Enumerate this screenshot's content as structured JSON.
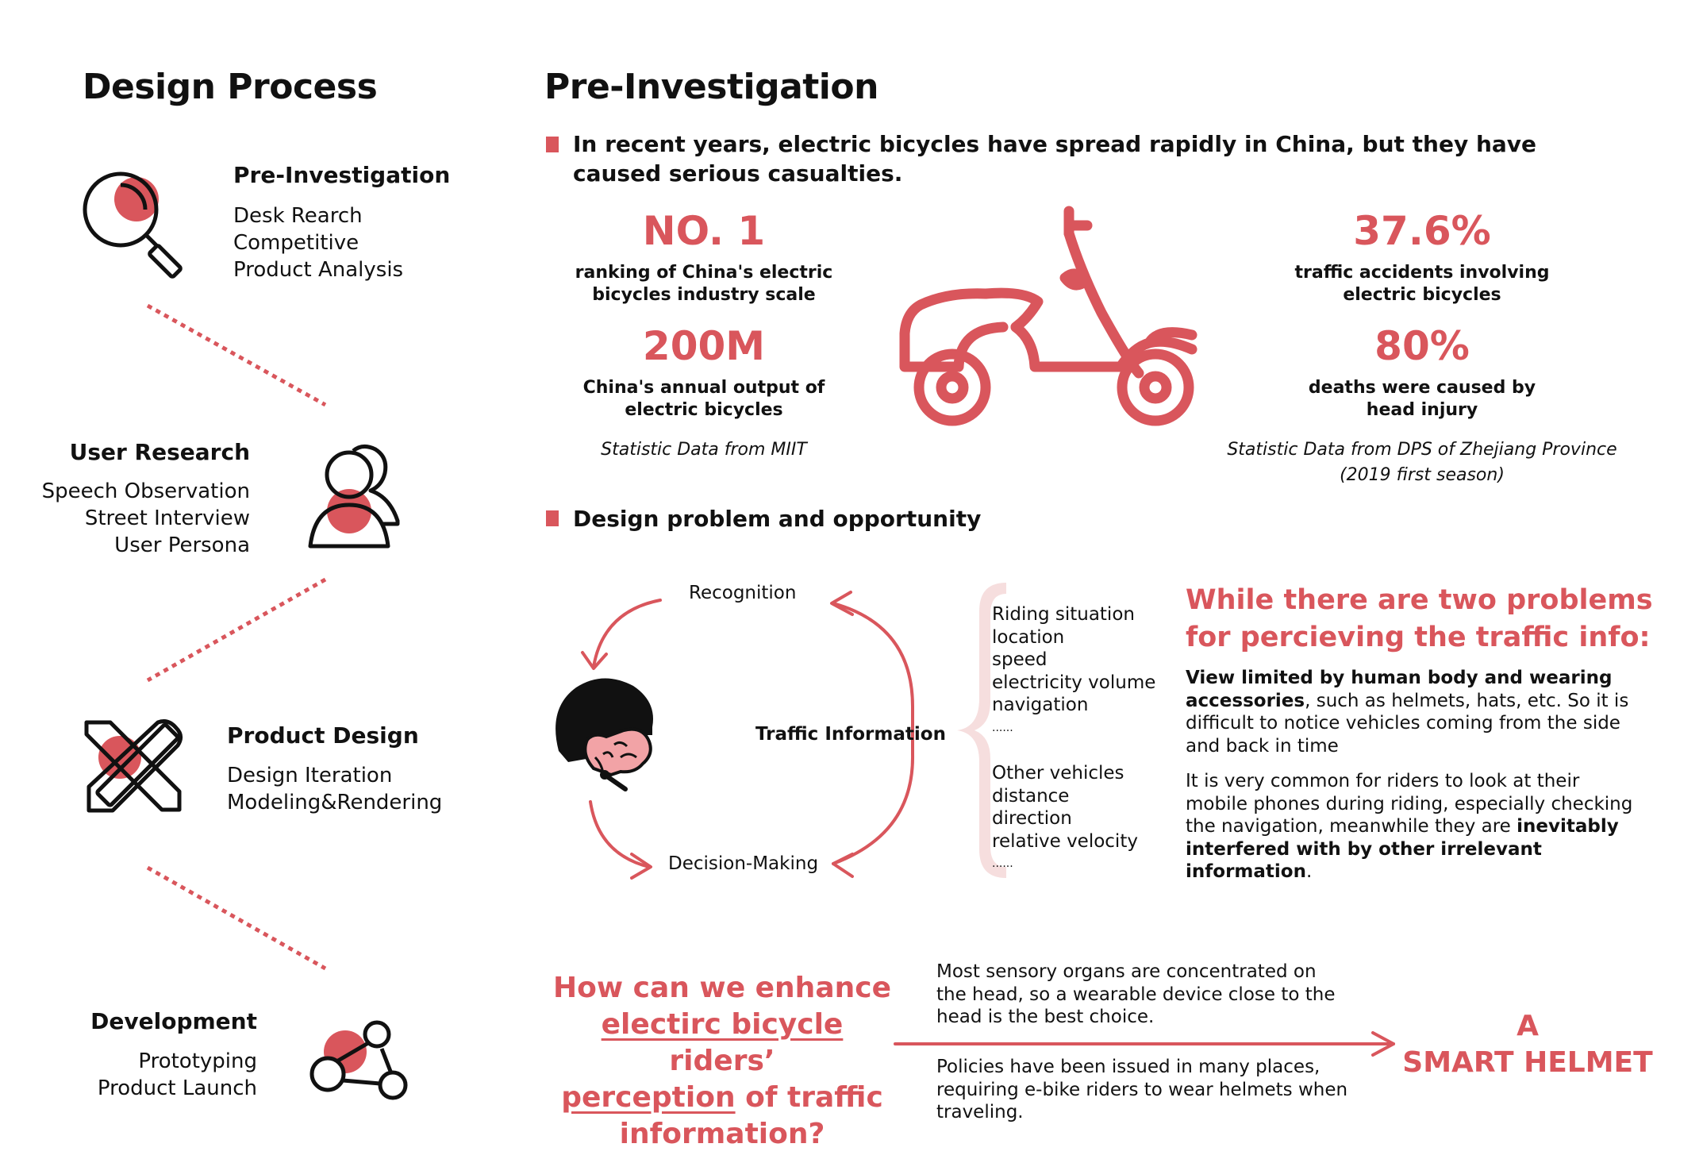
{
  "left": {
    "title": "Design Process",
    "steps": [
      {
        "title": "Pre-Investigation",
        "items": [
          "Desk Rearch",
          "Competitive",
          "Product Analysis"
        ]
      },
      {
        "title": "User Research",
        "items": [
          "Speech Observation",
          "Street Interview",
          "User Persona"
        ]
      },
      {
        "title": "Product Design",
        "items": [
          "Design Iteration",
          "Modeling&Rendering"
        ]
      },
      {
        "title": "Development",
        "items": [
          "Prototyping",
          "Product Launch"
        ]
      }
    ]
  },
  "main": {
    "title": "Pre-Investigation",
    "intro": "In recent years, electric bicycles have spread rapidly in China, but they have caused serious casualties.",
    "stats": [
      {
        "value": "NO. 1",
        "label": "ranking of China's electric bicycles industry scale"
      },
      {
        "value": "200M",
        "label": "China's annual output of electric bicycles"
      },
      {
        "value": "37.6%",
        "label": "traffic accidents involving electric bicycles"
      },
      {
        "value": "80%",
        "label": "deaths were caused by head injury"
      }
    ],
    "source_left": "Statistic Data from MIIT",
    "source_right_1": "Statistic Data from DPS of Zhejiang Province",
    "source_right_2": "(2019 first season)",
    "section2": "Design problem and opportunity",
    "cycle": {
      "top": "Recognition",
      "center": "Traffic Information",
      "bottom": "Decision-Making"
    },
    "riding": [
      "Riding situation",
      "location",
      "speed",
      "electricity volume",
      "navigation",
      "......"
    ],
    "vehicles": [
      "Other vehicles",
      "distance",
      "direction",
      "relative velocity",
      "......"
    ],
    "problem": {
      "title_1": "While there are two problems",
      "title_2": "for percieving the traffic info:",
      "p1_bold": "View limited by human body and wearing accessories",
      "p1_rest": ", such as helmets, hats, etc. So it is difficult to notice vehicles coming from the side and back in time",
      "p2_rest": "It is very common for riders to look at their mobile phones during riding, especially checking the navigation, meanwhile they are ",
      "p2_bold": "inevitably interfered with by other irrelevant information",
      "p2_end": "."
    },
    "question": {
      "line1": "How can we enhance",
      "u1": "electirc bicycle",
      "line2_rest": " riders’",
      "u2": "perception",
      "line3_rest": " of traffic",
      "line4": "information?"
    },
    "reasons": [
      "Most sensory organs are concentrated on the head, so a wearable device close to the head is the best choice.",
      "Policies have been issued in many places, requiring e-bike riders to wear helmets when traveling."
    ],
    "answer_1": "A",
    "answer_2": "SMART HELMET"
  },
  "colors": {
    "accent": "#d9565c",
    "accent_light": "#f6dede",
    "text": "#111111"
  },
  "icons": [
    "magnifier-icon",
    "users-icon",
    "pencil-ruler-icon",
    "network-icon",
    "scooter-icon",
    "rider-head-icon"
  ]
}
